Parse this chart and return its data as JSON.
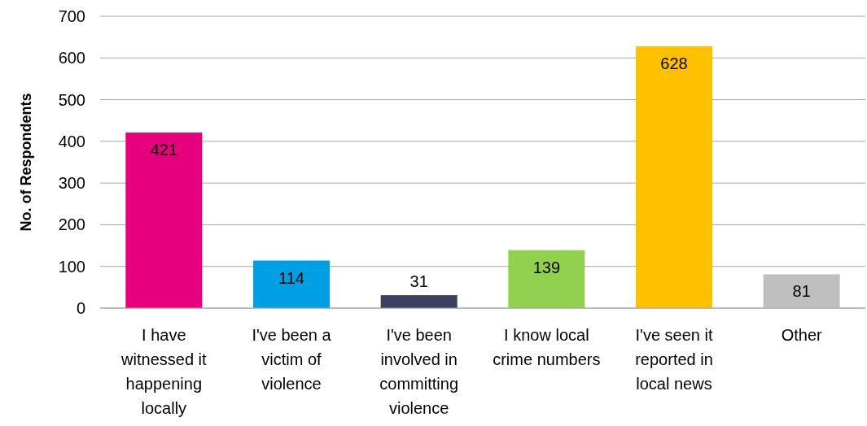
{
  "chart_data": {
    "type": "bar",
    "ylabel": "No. of Respondents",
    "categories": [
      "I have witnessed it happening locally",
      "I've been a victim of violence",
      "I've been involved in committing violence",
      "I know local crime numbers",
      "I've seen it reported in local news",
      "Other"
    ],
    "values": [
      421,
      114,
      31,
      139,
      628,
      81
    ],
    "colors": [
      "#e6007e",
      "#009fe3",
      "#3c3f62",
      "#92d050",
      "#ffc000",
      "#bfbfbf"
    ],
    "ylim": [
      0,
      700
    ],
    "yticks": [
      0,
      100,
      200,
      300,
      400,
      500,
      600,
      700
    ],
    "grid": "y",
    "data_labels": true
  }
}
